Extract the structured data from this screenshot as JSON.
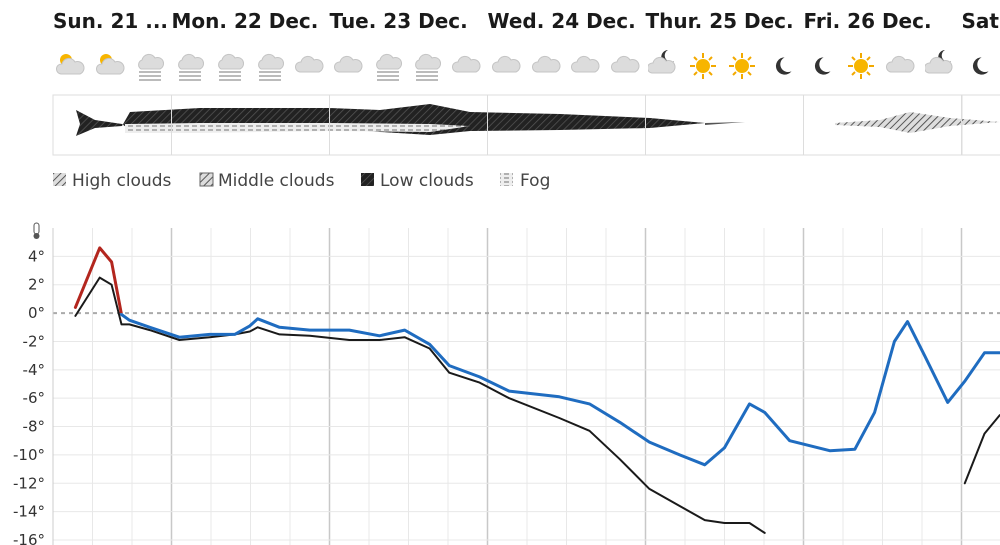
{
  "chart_data": {
    "type": "line",
    "days": [
      "Sun. 21 ...",
      "Mon. 22 Dec.",
      "Tue. 23 Dec.",
      "Wed. 24 Dec.",
      "Thur. 25 Dec.",
      "Fri. 26 Dec.",
      "Sat."
    ],
    "x": [
      9.4,
      13.1,
      14.9,
      16.4,
      17.6,
      20.7,
      25.2,
      29.8,
      33.6,
      35.9,
      37.1,
      40.4,
      45.0,
      51.0,
      55.6,
      59.4,
      63.2,
      66.2,
      70.8,
      75.3,
      82.9,
      87.5,
      92.1,
      96.6,
      101.2,
      105.0,
      108.0,
      111.8,
      114.1,
      117.9,
      124.0,
      127.8,
      130.8,
      133.8,
      135.8,
      138.4,
      141.9,
      144.5,
      147.5,
      149.8
    ],
    "series": [
      {
        "color": "#1f6cc0",
        "above_zero_color": "#b3261e",
        "values": [
          0.4,
          4.6,
          3.6,
          -0.1,
          -0.5,
          -1.0,
          -1.7,
          -1.5,
          -1.5,
          -0.9,
          -0.4,
          -1.0,
          -1.2,
          -1.2,
          -1.6,
          -1.2,
          -2.2,
          -3.7,
          -4.5,
          -5.5,
          -5.9,
          -6.4,
          -7.7,
          -9.1,
          -10.0,
          -10.7,
          -9.5,
          -6.4,
          -7.0,
          -9.0,
          -9.7,
          -9.6,
          -7.0,
          -2.0,
          -0.6,
          -3.0,
          -6.3,
          -4.8,
          -2.8,
          -2.8
        ]
      },
      {
        "color": "#1a1a1a",
        "values": [
          -0.2,
          2.5,
          2.0,
          -0.8,
          -0.8,
          -1.2,
          -1.9,
          -1.7,
          -1.5,
          -1.3,
          -1.0,
          -1.5,
          -1.6,
          -1.9,
          -1.9,
          -1.7,
          -2.5,
          -4.2,
          -4.9,
          -6.0,
          -7.4,
          -8.3,
          -10.3,
          -12.4,
          -13.6,
          -14.6,
          -14.8,
          -14.8,
          -15.5,
          null,
          null,
          null,
          null,
          null,
          null,
          null,
          null,
          -12.0,
          -8.5,
          -7.2
        ]
      }
    ],
    "xlim": [
      6,
      150
    ],
    "ylim": [
      -16,
      6
    ],
    "yticks": [
      {
        "value": 4,
        "label": "4°"
      },
      {
        "value": 2,
        "label": "2°"
      },
      {
        "value": 0,
        "label": "0°"
      },
      {
        "value": -2,
        "label": "-2°"
      },
      {
        "value": -4,
        "label": "-4°"
      },
      {
        "value": -6,
        "label": "-6°"
      },
      {
        "value": -8,
        "label": "-8°"
      },
      {
        "value": -10,
        "label": "-10°"
      },
      {
        "value": -12,
        "label": "-12°"
      },
      {
        "value": -14,
        "label": "-14°"
      },
      {
        "value": -16,
        "label": "-16°"
      }
    ],
    "grid": true
  },
  "cloud_legend": [
    "High clouds",
    "Middle clouds",
    "Low clouds",
    "Fog"
  ]
}
